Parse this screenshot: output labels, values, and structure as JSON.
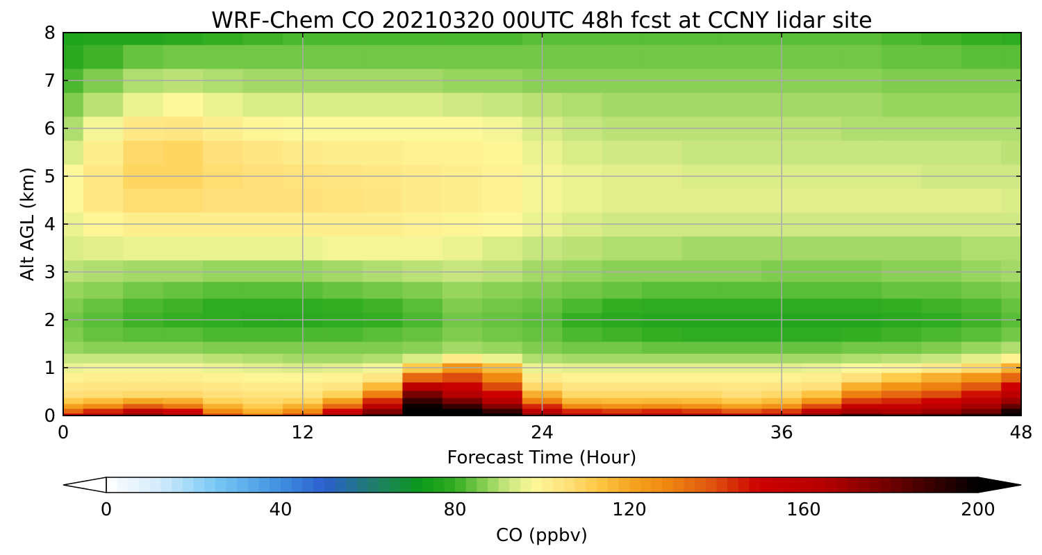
{
  "chart_data": {
    "type": "heatmap",
    "title": "WRF-Chem CO  20210320 00UTC 48h fcst at CCNY lidar site",
    "xlabel": "Forecast Time (Hour)",
    "ylabel": "Alt AGL (km)",
    "xlim": [
      0,
      48
    ],
    "ylim": [
      0,
      8
    ],
    "x_ticks": [
      "0",
      "12",
      "24",
      "36",
      "48"
    ],
    "y_ticks": [
      "0",
      "1",
      "2",
      "3",
      "4",
      "5",
      "6",
      "7",
      "8"
    ],
    "grid": true,
    "colorbar": {
      "label": "CO  (ppbv)",
      "ticks": [
        "0",
        "40",
        "80",
        "120",
        "160",
        "200"
      ],
      "range": [
        0,
        200
      ],
      "extend": "both",
      "orientation": "horizontal",
      "placement": "bottom"
    },
    "x": [
      0,
      2,
      4,
      6,
      8,
      10,
      12,
      14,
      16,
      18,
      20,
      22,
      24,
      26,
      28,
      30,
      32,
      34,
      36,
      38,
      40,
      42,
      44,
      46,
      48
    ],
    "y": [
      0.0,
      0.1,
      0.2,
      0.3,
      0.45,
      0.6,
      0.8,
      1.0,
      1.2,
      1.4,
      1.7,
      2.0,
      2.3,
      2.6,
      3.0,
      3.5,
      4.0,
      4.5,
      5.0,
      5.5,
      6.0,
      6.5,
      7.0,
      7.5,
      8.0
    ],
    "values": [
      [
        150,
        160,
        175,
        165,
        140,
        130,
        140,
        165,
        185,
        200,
        200,
        200,
        175,
        165,
        162,
        165,
        162,
        158,
        160,
        175,
        185,
        180,
        182,
        190,
        200
      ],
      [
        135,
        145,
        158,
        150,
        128,
        118,
        128,
        150,
        175,
        200,
        200,
        190,
        160,
        145,
        142,
        145,
        142,
        138,
        142,
        158,
        168,
        166,
        170,
        178,
        195
      ],
      [
        122,
        128,
        138,
        132,
        118,
        112,
        118,
        135,
        160,
        198,
        190,
        175,
        145,
        128,
        126,
        128,
        126,
        122,
        126,
        140,
        155,
        155,
        160,
        168,
        182
      ],
      [
        112,
        115,
        120,
        118,
        110,
        108,
        110,
        122,
        145,
        190,
        178,
        162,
        130,
        116,
        115,
        116,
        115,
        112,
        115,
        125,
        142,
        145,
        150,
        158,
        170
      ],
      [
        106,
        107,
        108,
        108,
        106,
        105,
        105,
        110,
        130,
        178,
        165,
        150,
        118,
        108,
        108,
        108,
        108,
        106,
        108,
        114,
        130,
        135,
        140,
        148,
        160
      ],
      [
        103,
        104,
        104,
        104,
        103,
        102,
        102,
        104,
        116,
        160,
        152,
        140,
        108,
        104,
        104,
        104,
        104,
        103,
        104,
        106,
        118,
        125,
        130,
        138,
        150
      ],
      [
        100,
        101,
        101,
        101,
        100,
        99,
        99,
        100,
        104,
        135,
        140,
        128,
        102,
        100,
        100,
        100,
        100,
        100,
        100,
        101,
        106,
        112,
        118,
        125,
        135
      ],
      [
        96,
        97,
        97,
        97,
        96,
        95,
        94,
        95,
        97,
        112,
        125,
        115,
        96,
        95,
        95,
        95,
        95,
        95,
        95,
        96,
        98,
        100,
        103,
        108,
        118
      ],
      [
        92,
        92,
        92,
        92,
        91,
        90,
        89,
        89,
        90,
        94,
        102,
        96,
        90,
        89,
        89,
        89,
        89,
        89,
        89,
        89,
        90,
        91,
        92,
        95,
        100
      ],
      [
        88,
        87,
        87,
        87,
        86,
        86,
        86,
        86,
        86,
        87,
        89,
        88,
        86,
        85,
        85,
        84,
        84,
        84,
        84,
        84,
        85,
        85,
        86,
        88,
        90
      ],
      [
        86,
        84,
        83,
        83,
        82,
        82,
        82,
        82,
        83,
        84,
        86,
        85,
        84,
        82,
        81,
        80,
        79,
        79,
        79,
        79,
        80,
        81,
        82,
        83,
        85
      ],
      [
        85,
        83,
        81,
        80,
        79,
        78,
        78,
        79,
        80,
        82,
        85,
        84,
        83,
        80,
        78,
        77,
        77,
        77,
        77,
        77,
        77,
        78,
        79,
        81,
        83
      ],
      [
        86,
        84,
        82,
        81,
        79,
        79,
        79,
        80,
        81,
        83,
        86,
        85,
        84,
        82,
        80,
        79,
        79,
        79,
        79,
        79,
        79,
        80,
        81,
        82,
        84
      ],
      [
        88,
        87,
        85,
        84,
        83,
        83,
        83,
        84,
        85,
        86,
        88,
        87,
        86,
        85,
        84,
        83,
        83,
        83,
        83,
        83,
        83,
        84,
        84,
        85,
        86
      ],
      [
        91,
        90,
        89,
        89,
        88,
        88,
        88,
        89,
        90,
        91,
        92,
        91,
        89,
        88,
        87,
        87,
        87,
        87,
        86,
        86,
        86,
        87,
        87,
        88,
        89
      ],
      [
        94,
        95,
        96,
        96,
        96,
        96,
        96,
        97,
        97,
        97,
        96,
        94,
        92,
        91,
        90,
        90,
        89,
        89,
        89,
        89,
        89,
        89,
        89,
        90,
        90
      ],
      [
        96,
        99,
        101,
        101,
        101,
        101,
        101,
        101,
        101,
        100,
        99,
        98,
        96,
        94,
        93,
        93,
        93,
        93,
        93,
        93,
        93,
        93,
        93,
        93,
        93
      ],
      [
        98,
        103,
        107,
        107,
        106,
        106,
        106,
        105,
        104,
        102,
        101,
        100,
        97,
        96,
        95,
        95,
        95,
        95,
        95,
        95,
        95,
        95,
        95,
        95,
        94
      ],
      [
        98,
        103,
        109,
        109,
        107,
        106,
        105,
        104,
        103,
        102,
        101,
        100,
        97,
        96,
        95,
        95,
        94,
        94,
        94,
        94,
        94,
        94,
        93,
        93,
        93
      ],
      [
        94,
        101,
        108,
        109,
        106,
        104,
        102,
        101,
        101,
        100,
        100,
        99,
        96,
        94,
        93,
        93,
        92,
        92,
        92,
        92,
        92,
        92,
        92,
        92,
        91
      ],
      [
        90,
        97,
        103,
        104,
        101,
        99,
        98,
        98,
        98,
        98,
        98,
        97,
        94,
        92,
        91,
        91,
        91,
        91,
        91,
        91,
        90,
        90,
        90,
        90,
        90
      ],
      [
        86,
        91,
        96,
        98,
        96,
        94,
        94,
        94,
        94,
        94,
        93,
        92,
        91,
        90,
        89,
        89,
        89,
        89,
        89,
        89,
        89,
        88,
        88,
        88,
        88
      ],
      [
        82,
        86,
        90,
        91,
        90,
        89,
        89,
        89,
        89,
        89,
        88,
        88,
        87,
        87,
        87,
        87,
        87,
        87,
        87,
        87,
        87,
        86,
        86,
        86,
        86
      ],
      [
        78,
        81,
        84,
        85,
        85,
        85,
        85,
        85,
        85,
        85,
        85,
        85,
        85,
        85,
        85,
        85,
        85,
        85,
        85,
        85,
        85,
        84,
        84,
        83,
        83
      ],
      [
        76,
        77,
        77,
        78,
        80,
        81,
        82,
        82,
        82,
        82,
        82,
        82,
        83,
        83,
        83,
        83,
        83,
        83,
        83,
        83,
        83,
        82,
        81,
        80,
        79
      ]
    ]
  }
}
